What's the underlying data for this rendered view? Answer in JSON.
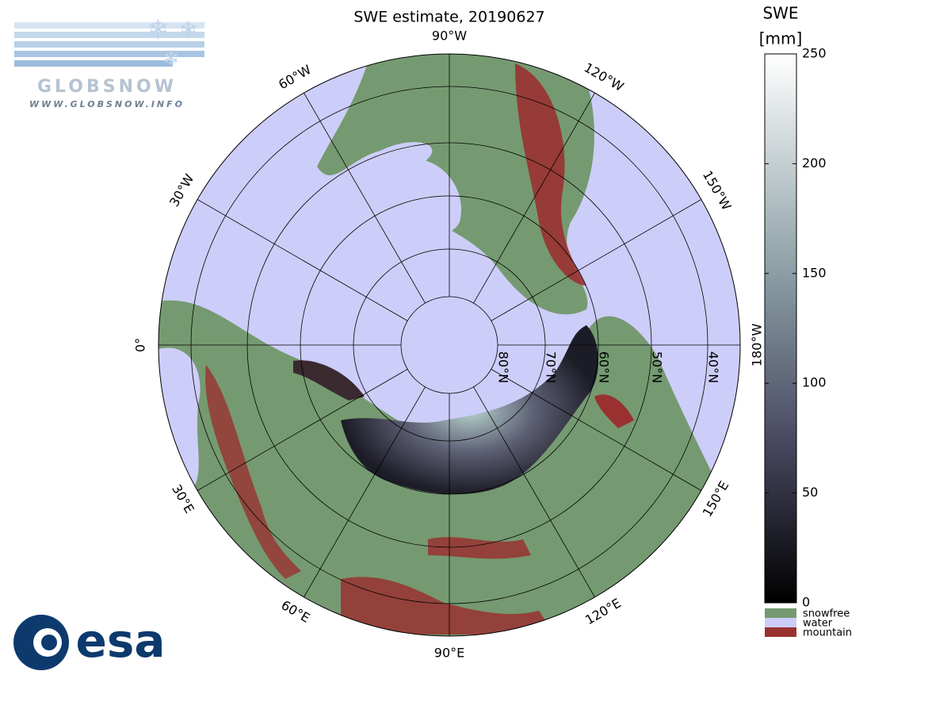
{
  "title": "SWE estimate, 20190627",
  "logo": {
    "name": "GLOBSNOW",
    "url": "WWW.GLOBSNOW.INFO",
    "agency": "esa"
  },
  "longitude_labels": [
    "0°",
    "30°E",
    "60°E",
    "90°E",
    "120°E",
    "150°E",
    "180°W",
    "150°W",
    "120°W",
    "90°W",
    "60°W",
    "30°W"
  ],
  "latitude_labels": [
    "80°N",
    "70°N",
    "60°N",
    "50°N",
    "40°N"
  ],
  "colorbar": {
    "title": "SWE",
    "unit": "[mm]",
    "lim": [
      0,
      250
    ],
    "ticks": [
      0,
      50,
      100,
      150,
      200,
      250
    ],
    "legend": [
      {
        "name": "snowfree",
        "color": "#759a71"
      },
      {
        "name": "water",
        "color": "#cdcdf9"
      },
      {
        "name": "mountain",
        "color": "#9a3131"
      }
    ]
  }
}
